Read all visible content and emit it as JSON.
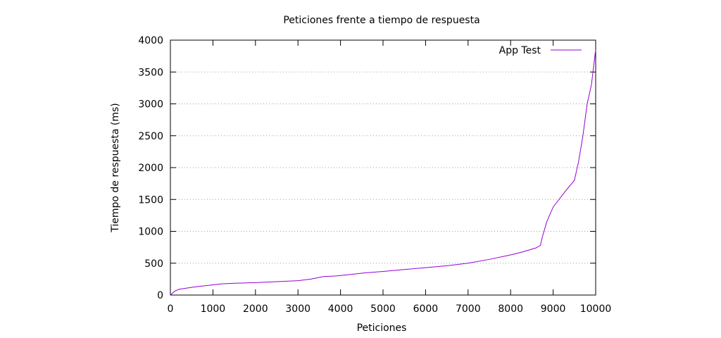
{
  "chart_data": {
    "type": "line",
    "title": "Peticiones frente a tiempo de respuesta",
    "xlabel": "Peticiones",
    "ylabel": "Tiempo de respuesta (ms)",
    "xlim": [
      0,
      10000
    ],
    "ylim": [
      0,
      4000
    ],
    "xticks": [
      0,
      1000,
      2000,
      3000,
      4000,
      5000,
      6000,
      7000,
      8000,
      9000,
      10000
    ],
    "yticks": [
      0,
      500,
      1000,
      1500,
      2000,
      2500,
      3000,
      3500,
      4000
    ],
    "grid": "horizontal dotted",
    "legend_position": "top-right",
    "series": [
      {
        "name": "App Test",
        "color": "#9400d3",
        "x": [
          0,
          100,
          200,
          400,
          600,
          800,
          1000,
          1200,
          1500,
          2000,
          2500,
          3000,
          3300,
          3600,
          3900,
          4200,
          4600,
          5000,
          5500,
          6000,
          6500,
          7000,
          7500,
          8000,
          8300,
          8600,
          8700,
          8750,
          8850,
          9000,
          9300,
          9500,
          9600,
          9700,
          9800,
          9900,
          10000
        ],
        "y": [
          0,
          60,
          90,
          110,
          130,
          145,
          160,
          175,
          185,
          195,
          210,
          225,
          250,
          290,
          300,
          320,
          350,
          370,
          400,
          430,
          460,
          500,
          560,
          630,
          680,
          740,
          780,
          920,
          1150,
          1380,
          1640,
          1800,
          2100,
          2500,
          3000,
          3300,
          3850
        ]
      }
    ]
  }
}
